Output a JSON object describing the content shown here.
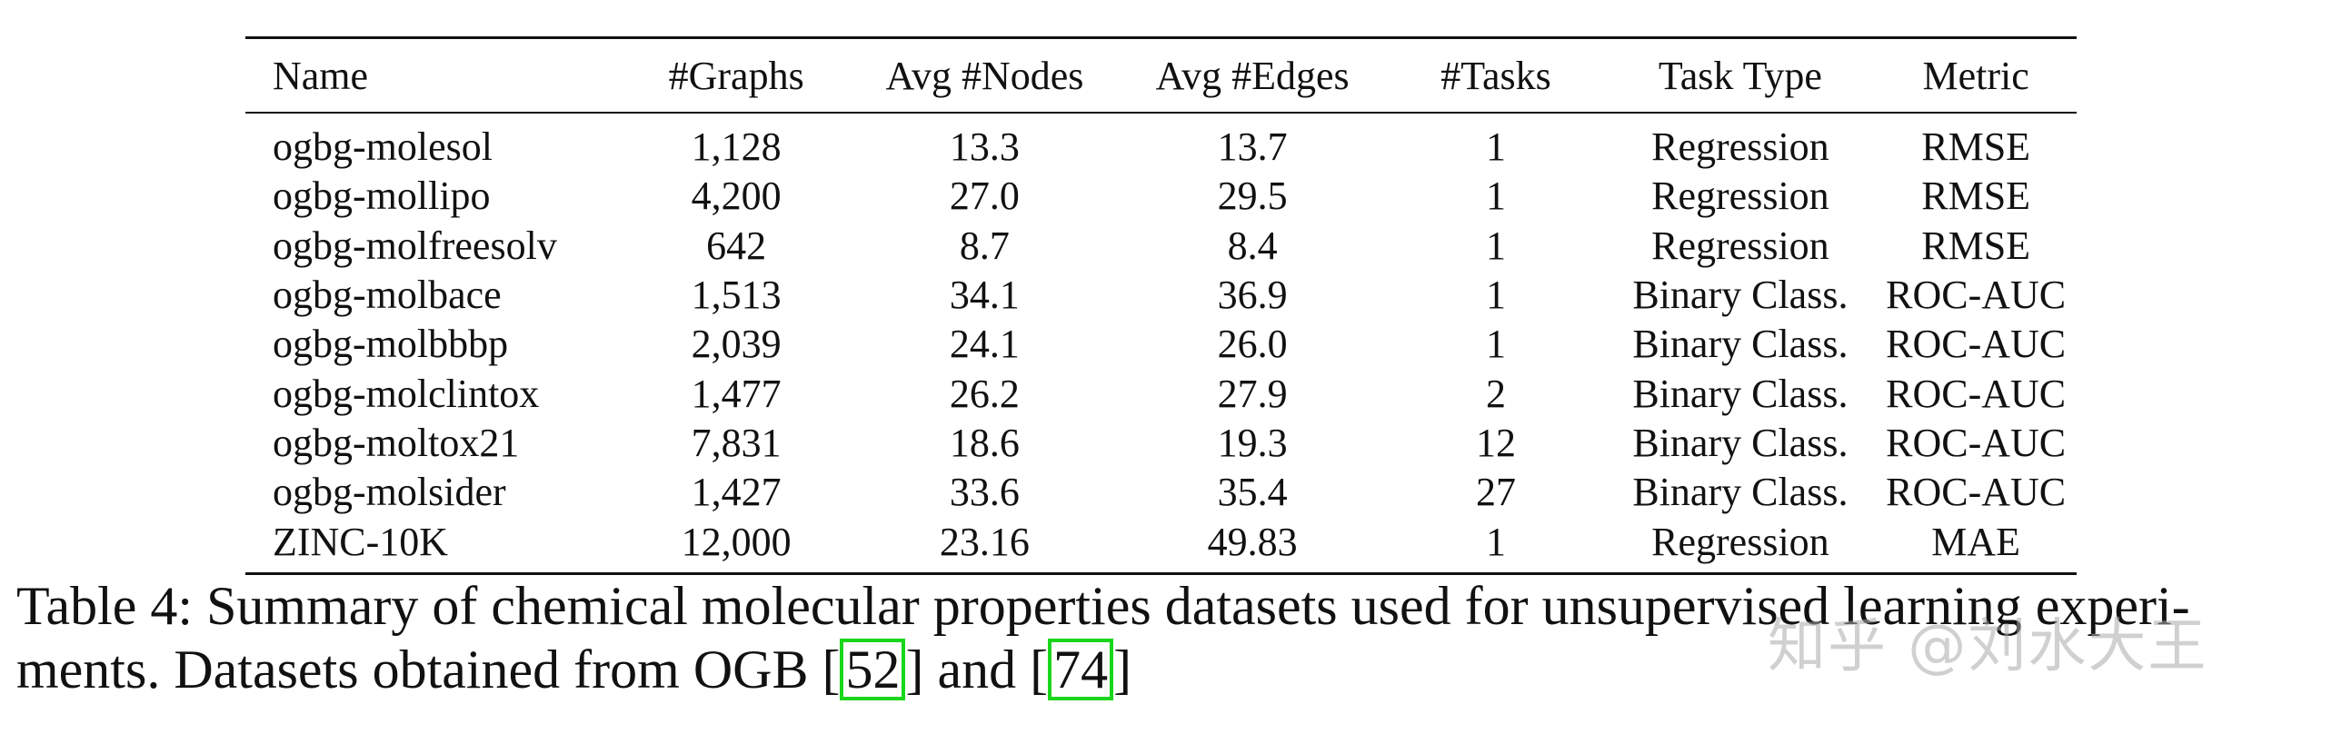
{
  "table": {
    "headers": [
      "Name",
      "#Graphs",
      "Avg #Nodes",
      "Avg #Edges",
      "#Tasks",
      "Task Type",
      "Metric"
    ],
    "rows": [
      [
        "ogbg-molesol",
        "1,128",
        "13.3",
        "13.7",
        "1",
        "Regression",
        "RMSE"
      ],
      [
        "ogbg-mollipo",
        "4,200",
        "27.0",
        "29.5",
        "1",
        "Regression",
        "RMSE"
      ],
      [
        "ogbg-molfreesolv",
        "642",
        "8.7",
        "8.4",
        "1",
        "Regression",
        "RMSE"
      ],
      [
        "ogbg-molbace",
        "1,513",
        "34.1",
        "36.9",
        "1",
        "Binary Class.",
        "ROC-AUC"
      ],
      [
        "ogbg-molbbbp",
        "2,039",
        "24.1",
        "26.0",
        "1",
        "Binary Class.",
        "ROC-AUC"
      ],
      [
        "ogbg-molclintox",
        "1,477",
        "26.2",
        "27.9",
        "2",
        "Binary Class.",
        "ROC-AUC"
      ],
      [
        "ogbg-moltox21",
        "7,831",
        "18.6",
        "19.3",
        "12",
        "Binary Class.",
        "ROC-AUC"
      ],
      [
        "ogbg-molsider",
        "1,427",
        "33.6",
        "35.4",
        "27",
        "Binary Class.",
        "ROC-AUC"
      ],
      [
        "ZINC-10K",
        "12,000",
        "23.16",
        "49.83",
        "1",
        "Regression",
        "MAE"
      ]
    ]
  },
  "caption": {
    "prefix": "Table 4: Summary of chemical molecular properties datasets used for unsupervised learning experi-",
    "line2_start": "ments. Datasets obtained from OGB [",
    "cite1": "52",
    "middle": "] and [",
    "cite2": "74",
    "end": "]"
  },
  "watermark": "知乎 @刘水大王",
  "colors": {
    "citation_box": "#1ad61a"
  }
}
